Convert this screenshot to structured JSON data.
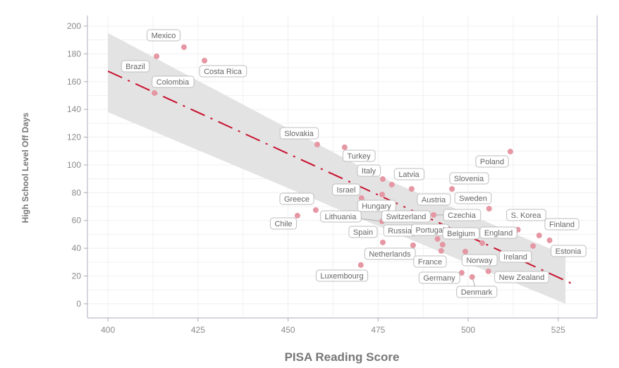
{
  "chart_data": {
    "type": "scatter",
    "title": "",
    "xlabel": "PISA Reading Score",
    "ylabel": "High School Level Off Days",
    "xlim": [
      394.3,
      535.8
    ],
    "ylim": [
      -10.2,
      207.6
    ],
    "x_ticks": [
      400,
      425,
      450,
      475,
      500,
      525
    ],
    "y_ticks": [
      0,
      20,
      40,
      60,
      80,
      100,
      120,
      140,
      160,
      180,
      200
    ],
    "grid": true,
    "colors": {
      "point": "#e597a3",
      "trend": "#c8102e",
      "band": "#e3e3e3"
    },
    "trend_line": {
      "x": [
        400,
        529.5
      ],
      "y": [
        167.5,
        13.7
      ]
    },
    "confidence_band": {
      "x": [
        400,
        475,
        527
      ],
      "upper": [
        195,
        92,
        35
      ],
      "lower": [
        138,
        56,
        0
      ]
    },
    "points": [
      {
        "label": "Mexico",
        "x": 421.1,
        "y": 184.8
      },
      {
        "label": "Brazil",
        "x": 413.5,
        "y": 178.2
      },
      {
        "label": "Costa Rica",
        "x": 426.8,
        "y": 175.1
      },
      {
        "label": "Colombia",
        "x": 412.9,
        "y": 151.8
      },
      {
        "label": "Slovakia",
        "x": 458.1,
        "y": 114.7
      },
      {
        "label": "Turkey",
        "x": 465.7,
        "y": 112.7
      },
      {
        "label": "Italy",
        "x": 476.3,
        "y": 89.8
      },
      {
        "label": "Latvia",
        "x": 478.8,
        "y": 85.8
      },
      {
        "label": "Israel",
        "x": 476.1,
        "y": 78.7
      },
      {
        "label": "Hungary",
        "x": 470.4,
        "y": 76.1
      },
      {
        "label": "Austria",
        "x": 484.3,
        "y": 82.7
      },
      {
        "label": "Greece",
        "x": 457.7,
        "y": 67.5
      },
      {
        "label": "Chile",
        "x": 452.6,
        "y": 63.5
      },
      {
        "label": "Lithuania",
        "x": 476.1,
        "y": 59.4
      },
      {
        "label": "Switzerland",
        "x": 482.7,
        "y": 63.5
      },
      {
        "label": "Czechia",
        "x": 490.4,
        "y": 64.0
      },
      {
        "label": "Spain",
        "x": 476.3,
        "y": 44.2
      },
      {
        "label": "Russia",
        "x": 484.7,
        "y": 42.1
      },
      {
        "label": "Portugal",
        "x": 491.5,
        "y": 46.7
      },
      {
        "label": "Belgium",
        "x": 492.9,
        "y": 42.6
      },
      {
        "label": "Netherlands",
        "x": 484.7,
        "y": 42.1
      },
      {
        "label": "France",
        "x": 492.5,
        "y": 38.1
      },
      {
        "label": "Norway",
        "x": 499.2,
        "y": 37.6
      },
      {
        "label": "Luxembourg",
        "x": 470.2,
        "y": 27.9
      },
      {
        "label": "Germany",
        "x": 498.2,
        "y": 22.3
      },
      {
        "label": "Denmark",
        "x": 501.1,
        "y": 19.3
      },
      {
        "label": "Poland",
        "x": 511.7,
        "y": 109.6
      },
      {
        "label": "Slovenia",
        "x": 495.5,
        "y": 82.7
      },
      {
        "label": "Sweden",
        "x": 505.8,
        "y": 68.5
      },
      {
        "label": "S. Korea",
        "x": 513.8,
        "y": 53.3
      },
      {
        "label": "Finland",
        "x": 519.7,
        "y": 49.2
      },
      {
        "label": "Estonia",
        "x": 522.6,
        "y": 45.7
      },
      {
        "label": "England",
        "x": 503.9,
        "y": 43.7
      },
      {
        "label": "Ireland",
        "x": 518.0,
        "y": 41.6
      },
      {
        "label": "New Zealand",
        "x": 505.6,
        "y": 23.4
      }
    ]
  }
}
